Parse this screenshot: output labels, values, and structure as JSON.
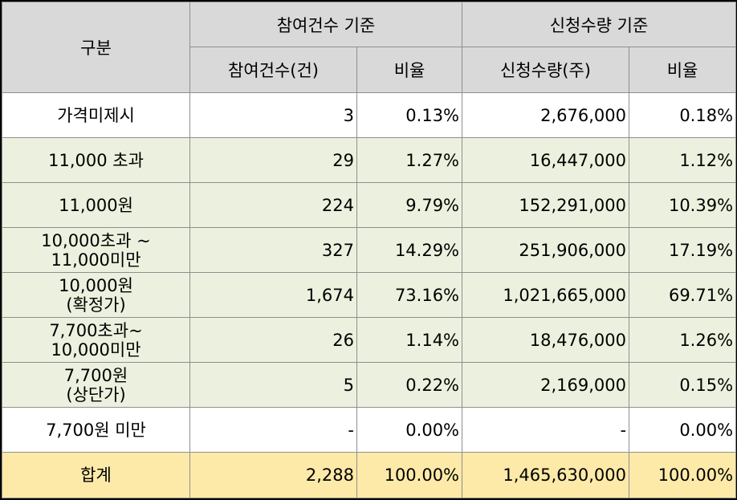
{
  "header": {
    "category": "구분",
    "group_participation": "참여건수 기준",
    "group_quantity": "신청수량 기준",
    "col_participation_count": "참여건수(건)",
    "col_participation_ratio": "비율",
    "col_quantity": "신청수량(주)",
    "col_quantity_ratio": "비율"
  },
  "rows": [
    {
      "label_line1": "가격미제시",
      "label_line2": "",
      "count": "3",
      "count_ratio": "0.13%",
      "quantity": "2,676,000",
      "quantity_ratio": "0.18%"
    },
    {
      "label_line1": "11,000 초과",
      "label_line2": "",
      "count": "29",
      "count_ratio": "1.27%",
      "quantity": "16,447,000",
      "quantity_ratio": "1.12%"
    },
    {
      "label_line1": "11,000원",
      "label_line2": "",
      "count": "224",
      "count_ratio": "9.79%",
      "quantity": "152,291,000",
      "quantity_ratio": "10.39%"
    },
    {
      "label_line1": "10,000초과 ~",
      "label_line2": "11,000미만",
      "count": "327",
      "count_ratio": "14.29%",
      "quantity": "251,906,000",
      "quantity_ratio": "17.19%"
    },
    {
      "label_line1": "10,000원",
      "label_line2": "(확정가)",
      "count": "1,674",
      "count_ratio": "73.16%",
      "quantity": "1,021,665,000",
      "quantity_ratio": "69.71%"
    },
    {
      "label_line1": "7,700초과~",
      "label_line2": "10,000미만",
      "count": "26",
      "count_ratio": "1.14%",
      "quantity": "18,476,000",
      "quantity_ratio": "1.26%"
    },
    {
      "label_line1": "7,700원",
      "label_line2": "(상단가)",
      "count": "5",
      "count_ratio": "0.22%",
      "quantity": "2,169,000",
      "quantity_ratio": "0.15%"
    },
    {
      "label_line1": "7,700원 미만",
      "label_line2": "",
      "count": "-",
      "count_ratio": "0.00%",
      "quantity": "-",
      "quantity_ratio": "0.00%"
    }
  ],
  "total": {
    "label": "합계",
    "count": "2,288",
    "count_ratio": "100.00%",
    "quantity": "1,465,630,000",
    "quantity_ratio": "100.00%"
  },
  "colors": {
    "header_bg": "#d9d9d9",
    "highlight_row_bg": "#ebf1de",
    "total_row_bg": "#fdeaa8",
    "border": "#8f8f8f"
  }
}
